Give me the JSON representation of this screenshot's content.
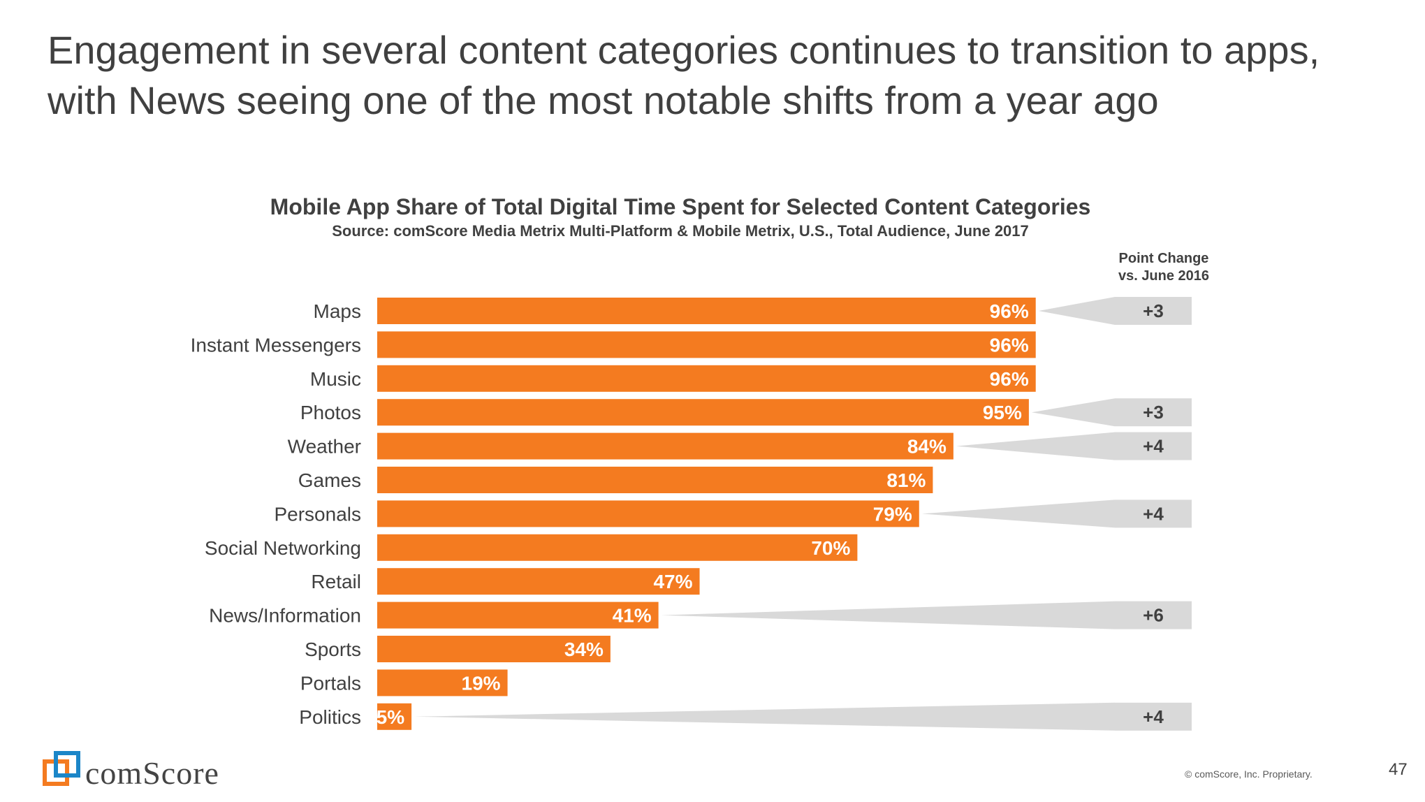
{
  "slide": {
    "title_line1": "Engagement in several content categories continues to transition to apps,",
    "title_line2": "with News seeing one of the most notable shifts from a year ago",
    "logo_text": "comScore",
    "copyright": "© comScore, Inc. Proprietary.",
    "page_number": "47"
  },
  "colors": {
    "bar": "#F47B20",
    "change_box": "#D9D9D9",
    "text": "#404040"
  },
  "chart_data": {
    "type": "bar",
    "orientation": "horizontal",
    "title": "Mobile App Share of Total Digital Time Spent for Selected Content Categories",
    "subtitle": "Source: comScore Media Metrix Multi-Platform & Mobile Metrix, U.S., Total Audience, June 2017",
    "change_header_line1": "Point Change",
    "change_header_line2": "vs. June 2016",
    "categories": [
      "Maps",
      "Instant Messengers",
      "Music",
      "Photos",
      "Weather",
      "Games",
      "Personals",
      "Social Networking",
      "Retail",
      "News/Information",
      "Sports",
      "Portals",
      "Politics"
    ],
    "values": [
      96,
      96,
      96,
      95,
      84,
      81,
      79,
      70,
      47,
      41,
      34,
      19,
      5
    ],
    "labels": [
      "96%",
      "96%",
      "96%",
      "95%",
      "84%",
      "81%",
      "79%",
      "70%",
      "47%",
      "41%",
      "34%",
      "19%",
      "5%"
    ],
    "point_change": [
      "+3",
      null,
      null,
      "+3",
      "+4",
      null,
      "+4",
      null,
      null,
      "+6",
      null,
      null,
      "+4"
    ],
    "xlim": [
      0,
      100
    ]
  }
}
